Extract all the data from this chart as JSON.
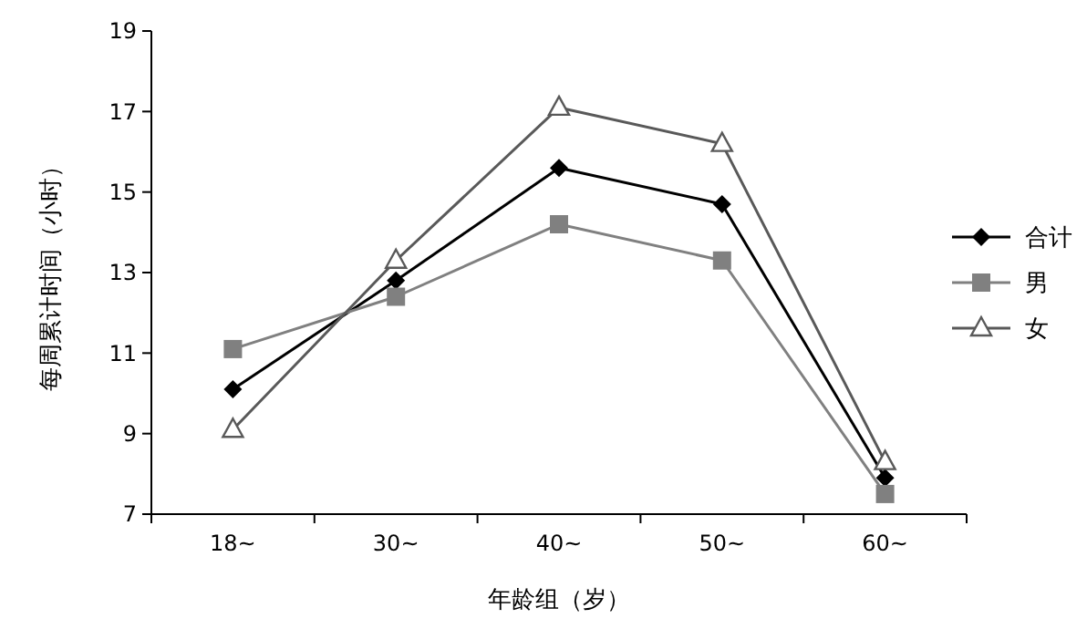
{
  "chart_data": {
    "type": "line",
    "xlabel": "年龄组（岁）",
    "ylabel": "每周累计时间（小时）",
    "categories": [
      "18~",
      "30~",
      "40~",
      "50~",
      "60~"
    ],
    "ylim": [
      7,
      19
    ],
    "yticks": [
      7,
      9,
      11,
      13,
      15,
      17,
      19
    ],
    "grid": false,
    "legend": "right",
    "series": [
      {
        "name": "合计",
        "color": "#000000",
        "marker": "diamond",
        "values": [
          10.1,
          12.8,
          15.6,
          14.7,
          7.9
        ]
      },
      {
        "name": "男",
        "color": "#808080",
        "marker": "square",
        "values": [
          11.1,
          12.4,
          14.2,
          13.3,
          7.5
        ]
      },
      {
        "name": "女",
        "color": "#595959",
        "marker": "triangle",
        "values": [
          9.1,
          13.3,
          17.1,
          16.2,
          8.3
        ]
      }
    ]
  }
}
